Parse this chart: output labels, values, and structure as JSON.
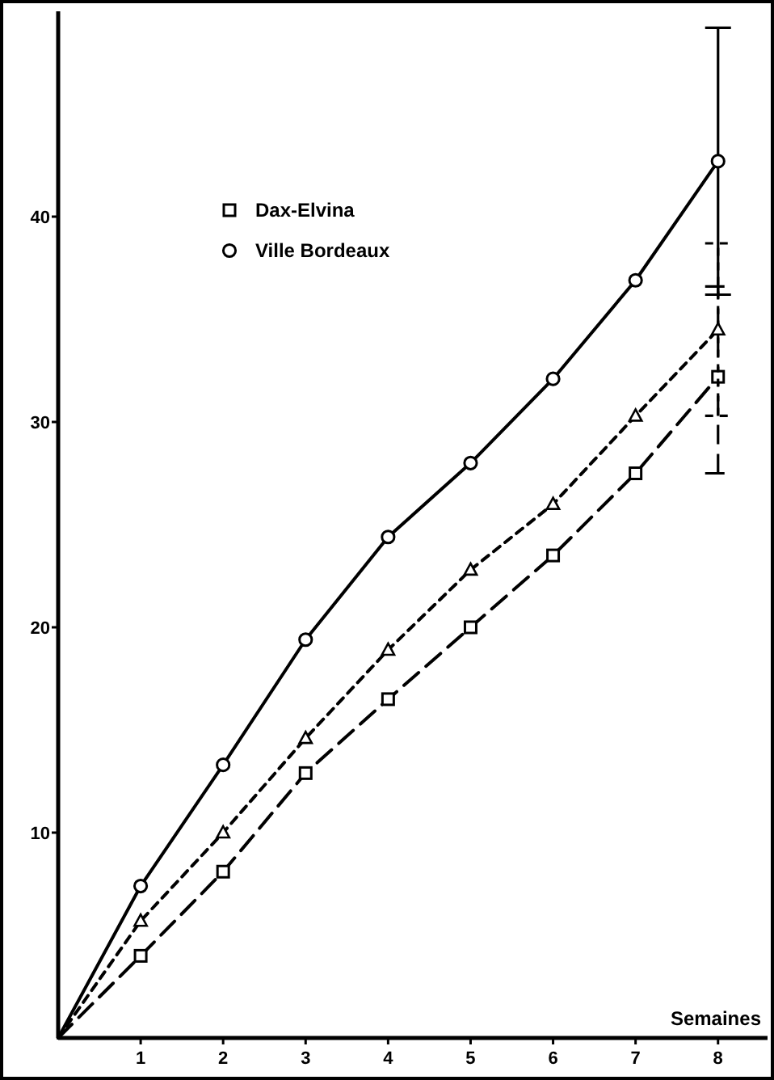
{
  "chart_data": {
    "type": "line",
    "xlabel": "Semaines",
    "x": [
      0,
      1,
      2,
      3,
      4,
      5,
      6,
      7,
      8
    ],
    "xlim": [
      0,
      8.6
    ],
    "xticks": [
      1,
      2,
      3,
      4,
      5,
      6,
      7,
      8
    ],
    "ylim": [
      0,
      50
    ],
    "yticks": [
      10,
      20,
      30,
      40
    ],
    "grid": false,
    "legend": "top left",
    "series": [
      {
        "name": "Dax-Elvina",
        "color": "#000000",
        "marker": "square",
        "line_style": "dashed",
        "values": [
          0,
          4.0,
          8.1,
          12.9,
          16.5,
          20.0,
          23.5,
          27.5,
          32.2
        ],
        "errors": [
          null,
          null,
          null,
          null,
          null,
          null,
          null,
          null,
          [
            27.5,
            36.6
          ]
        ]
      },
      {
        "color": "#000000",
        "marker": "triangle",
        "line_style": "dotted",
        "values": [
          0,
          5.7,
          10.0,
          14.6,
          18.9,
          22.8,
          26.0,
          30.3,
          34.5
        ],
        "errors": [
          null,
          null,
          null,
          null,
          null,
          null,
          null,
          null,
          [
            30.3,
            38.7
          ]
        ]
      },
      {
        "name": "Ville Bordeaux",
        "color": "#000000",
        "marker": "circle",
        "line_style": "solid",
        "values": [
          0,
          7.4,
          13.3,
          19.4,
          24.4,
          28.0,
          32.1,
          36.9,
          42.7
        ],
        "errors": [
          null,
          null,
          null,
          null,
          null,
          null,
          null,
          null,
          [
            36.2,
            49.2
          ]
        ]
      }
    ]
  }
}
